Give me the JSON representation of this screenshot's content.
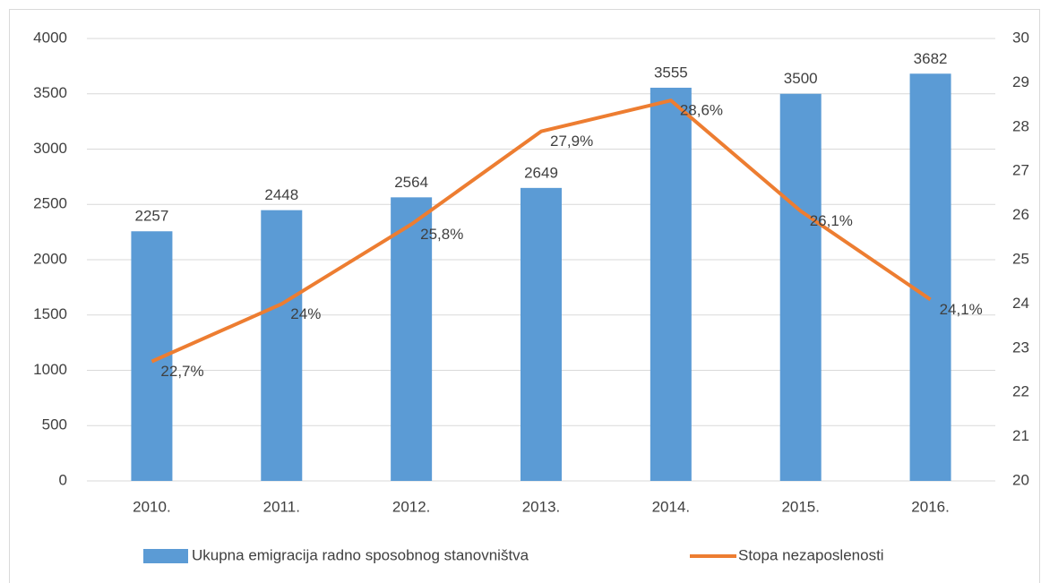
{
  "chart_data": {
    "type": "bar",
    "categories": [
      "2010.",
      "2011.",
      "2012.",
      "2013.",
      "2014.",
      "2015.",
      "2016."
    ],
    "series": [
      {
        "name": "Ukupna emigracija radno sposobnog stanovništva",
        "color": "#5b9bd5",
        "values": [
          2257,
          2448,
          2564,
          2649,
          3555,
          3500,
          3682
        ]
      },
      {
        "name": "Stopa nezaposlenosti",
        "color": "#ed7d31",
        "type": "line",
        "axis": "y2",
        "values": [
          22.7,
          24,
          25.8,
          27.9,
          28.6,
          26.1,
          24.1
        ],
        "value_labels": [
          "22,7%",
          "24%",
          "25,8%",
          "27,9%",
          "28,6%",
          "26,1%",
          "24,1%"
        ]
      }
    ],
    "ylim": [
      0,
      4000
    ],
    "yticks": [
      0,
      500,
      1000,
      1500,
      2000,
      2500,
      3000,
      3500,
      4000
    ],
    "y2lim": [
      20,
      30
    ],
    "y2ticks": [
      20,
      21,
      22,
      23,
      24,
      25,
      26,
      27,
      28,
      29,
      30
    ],
    "grid": true,
    "legend": "bottom"
  }
}
